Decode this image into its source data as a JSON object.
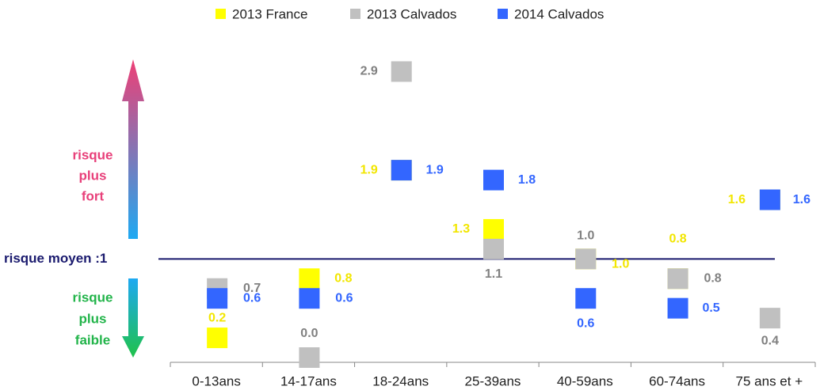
{
  "chart_data": {
    "type": "dot",
    "categories": [
      "0-13ans",
      "14-17ans",
      "18-24ans",
      "25-39ans",
      "40-59ans",
      "60-74ans",
      "75 ans et +"
    ],
    "series": [
      {
        "name": "2013  France",
        "color": "#ffff00",
        "label_color": "#f2e600",
        "values": [
          0.2,
          0.8,
          1.9,
          1.3,
          1.0,
          0.8,
          1.6
        ],
        "value_labels": [
          "0.2",
          "0.8",
          "1.9",
          "1.3",
          "1.0",
          "0.8",
          "1.6"
        ]
      },
      {
        "name": "2013 Calvados",
        "color": "#c0c0c0",
        "label_color": "#808080",
        "values": [
          0.7,
          0.0,
          2.9,
          1.1,
          1.0,
          0.8,
          0.4
        ],
        "value_labels": [
          "0.7",
          "0.0",
          "2.9",
          "1.1",
          "1.0",
          "0.8",
          "0.4"
        ]
      },
      {
        "name": "2014 Calvados",
        "color": "#3366ff",
        "label_color": "#3366ff",
        "values": [
          0.6,
          0.6,
          1.9,
          1.8,
          0.6,
          0.5,
          1.6
        ],
        "value_labels": [
          "0.6",
          "0.6",
          "1.9",
          "1.8",
          "0.6",
          "0.5",
          "1.6"
        ]
      }
    ],
    "ylim": [
      0,
      3
    ],
    "reference": {
      "value": 1,
      "label": "risque moyen :1",
      "color": "#1a1a6e"
    },
    "annotations": {
      "up": [
        "risque",
        "plus",
        "fort"
      ],
      "down": [
        "risque",
        "plus",
        "faible"
      ]
    },
    "legend": "top"
  }
}
